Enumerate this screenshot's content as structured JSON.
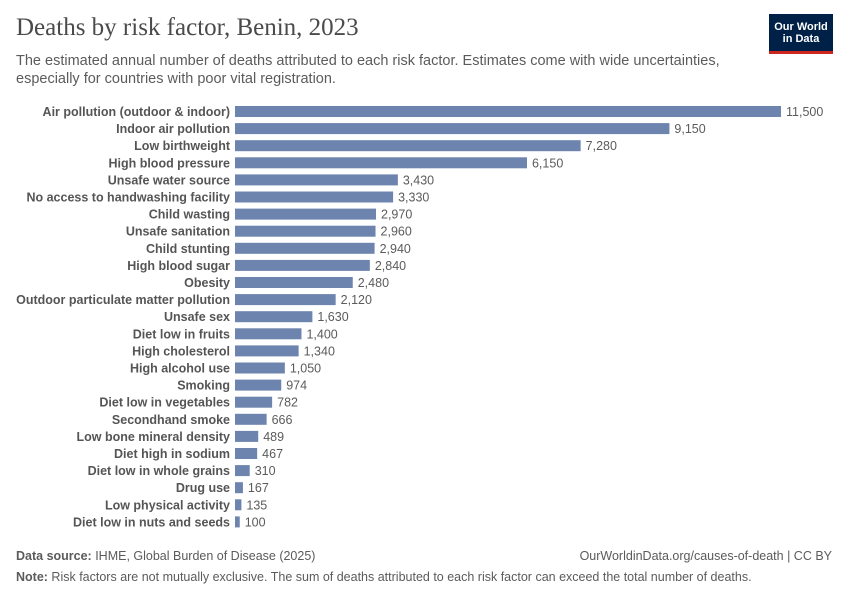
{
  "header": {
    "title": "Deaths by risk factor, Benin, 2023",
    "subtitle": "The estimated annual number of deaths attributed to each risk factor. Estimates come with wide uncertainties, especially for countries with poor vital registration.",
    "logo_line1": "Our World",
    "logo_line2": "in Data"
  },
  "footer": {
    "source_label": "Data source:",
    "source_text": " IHME, Global Burden of Disease (2025)",
    "url": "OurWorldinData.org/causes-of-death | CC BY",
    "note_label": "Note:",
    "note_text": " Risk factors are not mutually exclusive. The sum of deaths attributed to each risk factor can exceed the total number of deaths."
  },
  "colors": {
    "bar": "#6d84ae",
    "logo_bg": "#002147",
    "logo_accent": "#ce261e"
  },
  "chart_data": {
    "type": "bar",
    "orientation": "horizontal",
    "title": "Deaths by risk factor, Benin, 2023",
    "categories": [
      "Air pollution (outdoor & indoor)",
      "Indoor air pollution",
      "Low birthweight",
      "High blood pressure",
      "Unsafe water source",
      "No access to handwashing facility",
      "Child wasting",
      "Unsafe sanitation",
      "Child stunting",
      "High blood sugar",
      "Obesity",
      "Outdoor particulate matter pollution",
      "Unsafe sex",
      "Diet low in fruits",
      "High cholesterol",
      "High alcohol use",
      "Smoking",
      "Diet low in vegetables",
      "Secondhand smoke",
      "Low bone mineral density",
      "Diet high in sodium",
      "Diet low in whole grains",
      "Drug use",
      "Low physical activity",
      "Diet low in nuts and seeds"
    ],
    "values": [
      11500,
      9150,
      7280,
      6150,
      3430,
      3330,
      2970,
      2960,
      2940,
      2840,
      2480,
      2120,
      1630,
      1400,
      1340,
      1050,
      974,
      782,
      666,
      489,
      467,
      310,
      167,
      135,
      100
    ],
    "value_labels": [
      "11,500",
      "9,150",
      "7,280",
      "6,150",
      "3,430",
      "3,330",
      "2,970",
      "2,960",
      "2,940",
      "2,840",
      "2,480",
      "2,120",
      "1,630",
      "1,400",
      "1,340",
      "1,050",
      "974",
      "782",
      "666",
      "489",
      "467",
      "310",
      "167",
      "135",
      "100"
    ],
    "xlim": [
      0,
      11500
    ],
    "grid": false,
    "legend": "none"
  }
}
